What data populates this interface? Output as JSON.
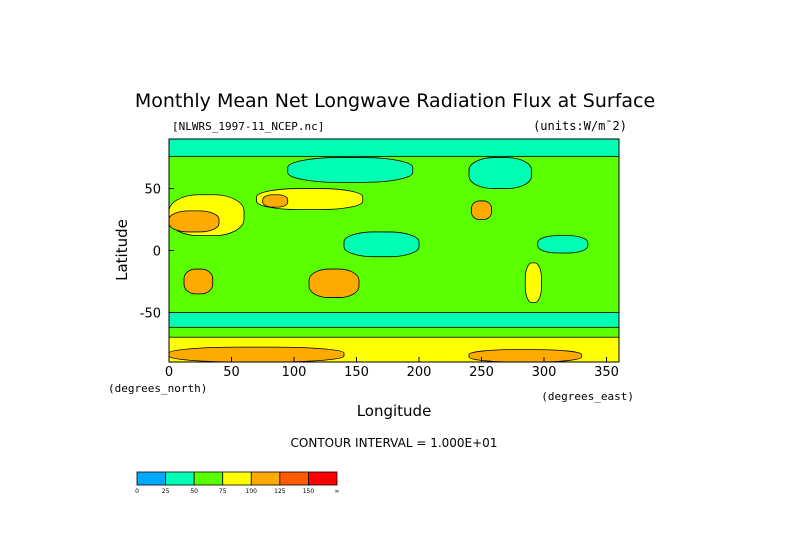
{
  "chart_data": {
    "type": "heatmap",
    "title": "Monthly Mean Net Longwave Radiation Flux at Surface",
    "file_label": "[NLWRS_1997-11_NCEP.nc]",
    "units_label": "(units:W/m¯2)",
    "xlabel": "Longitude",
    "ylabel": "Latitude",
    "x_units_label": "(degrees_east)",
    "y_units_label": "(degrees_north)",
    "xlim": [
      0,
      360
    ],
    "ylim": [
      -90,
      90
    ],
    "x_ticks": [
      "0",
      "50",
      "100",
      "150",
      "200",
      "250",
      "300",
      "350"
    ],
    "y_ticks": [
      "50",
      "0",
      "-50"
    ],
    "contour_interval_label": "CONTOUR INTERVAL = 1.000E+01",
    "background_level": "50-75",
    "colorbar": {
      "labels": [
        "0",
        "25",
        "50",
        "75",
        "100",
        "125",
        "150",
        "∞"
      ],
      "colors": [
        "#00a8ff",
        "#00ffb4",
        "#5aff00",
        "#ffff00",
        "#ffaa00",
        "#ff5a00",
        "#ff0000"
      ]
    },
    "regions": [
      {
        "lon": [
          0,
          360
        ],
        "lat": [
          76,
          90
        ],
        "color_index": 1
      },
      {
        "lon": [
          95,
          195
        ],
        "lat": [
          55,
          75
        ],
        "color_index": 1
      },
      {
        "lon": [
          240,
          290
        ],
        "lat": [
          50,
          75
        ],
        "color_index": 1
      },
      {
        "lon": [
          140,
          200
        ],
        "lat": [
          -5,
          15
        ],
        "color_index": 1
      },
      {
        "lon": [
          295,
          335
        ],
        "lat": [
          -2,
          12
        ],
        "color_index": 1
      },
      {
        "lon": [
          0,
          360
        ],
        "lat": [
          -62,
          -50
        ],
        "color_index": 1
      },
      {
        "lon": [
          0,
          60
        ],
        "lat": [
          12,
          45
        ],
        "color_index": 3
      },
      {
        "lon": [
          0,
          40
        ],
        "lat": [
          15,
          32
        ],
        "color_index": 4
      },
      {
        "lon": [
          70,
          155
        ],
        "lat": [
          33,
          50
        ],
        "color_index": 3
      },
      {
        "lon": [
          75,
          95
        ],
        "lat": [
          35,
          45
        ],
        "color_index": 4
      },
      {
        "lon": [
          12,
          35
        ],
        "lat": [
          -35,
          -15
        ],
        "color_index": 4
      },
      {
        "lon": [
          112,
          152
        ],
        "lat": [
          -38,
          -15
        ],
        "color_index": 4
      },
      {
        "lon": [
          242,
          258
        ],
        "lat": [
          25,
          40
        ],
        "color_index": 4
      },
      {
        "lon": [
          285,
          298
        ],
        "lat": [
          -42,
          -10
        ],
        "color_index": 3
      },
      {
        "lon": [
          0,
          360
        ],
        "lat": [
          -90,
          -70
        ],
        "color_index": 3
      },
      {
        "lon": [
          0,
          140
        ],
        "lat": [
          -90,
          -78
        ],
        "color_index": 4
      },
      {
        "lon": [
          240,
          330
        ],
        "lat": [
          -90,
          -80
        ],
        "color_index": 4
      }
    ]
  }
}
